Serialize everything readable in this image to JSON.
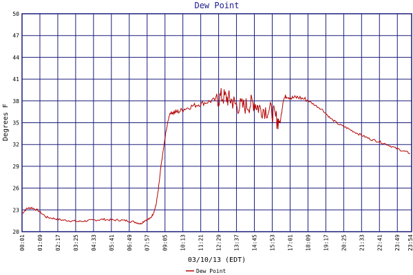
{
  "chart_data": {
    "type": "line",
    "title": "Dew Point",
    "xlabel": "03/10/13 (EDT)",
    "ylabel": "Degrees F",
    "ylim": [
      20,
      50
    ],
    "y_ticks": [
      "20",
      "23",
      "26",
      "29",
      "32",
      "35",
      "38",
      "41",
      "44",
      "47",
      "50"
    ],
    "x_tick_labels": [
      "00:01",
      "01:09",
      "02:17",
      "03:25",
      "04:33",
      "05:41",
      "06:49",
      "07:57",
      "09:05",
      "10:13",
      "11:21",
      "12:29",
      "13:37",
      "14:45",
      "15:53",
      "17:01",
      "18:09",
      "19:17",
      "20:25",
      "21:33",
      "22:41",
      "23:49",
      "23:54"
    ],
    "grid": true,
    "legend_position": "bottom-center",
    "colors": {
      "series": "#b40000",
      "grid": "#1a1a7a",
      "title": "#1a1a8c"
    },
    "series": [
      {
        "name": "Dew Point",
        "x_hours": [
          0.0,
          0.3,
          0.6,
          1.0,
          1.5,
          2.0,
          2.5,
          3.0,
          3.5,
          4.0,
          4.5,
          5.0,
          5.5,
          6.0,
          6.5,
          7.0,
          7.3,
          7.6,
          7.9,
          8.1,
          8.25,
          8.4,
          8.55,
          8.7,
          8.9,
          9.1,
          9.3,
          9.6,
          10.0,
          10.5,
          11.0,
          11.5,
          12.0,
          12.3,
          12.6,
          12.9,
          13.2,
          13.6,
          14.0,
          14.3,
          14.6,
          15.0,
          15.4,
          15.7,
          15.9,
          16.1,
          16.3,
          16.6,
          17.0,
          17.5,
          18.0,
          18.5,
          19.0,
          19.5,
          20.0,
          20.5,
          21.0,
          21.5,
          22.0,
          22.5,
          23.0,
          23.5,
          23.9
        ],
        "values": [
          22.5,
          23.2,
          23.3,
          22.9,
          22.0,
          21.8,
          21.6,
          21.5,
          21.4,
          21.5,
          21.6,
          21.7,
          21.6,
          21.6,
          21.5,
          21.3,
          21.1,
          21.6,
          21.8,
          22.6,
          23.6,
          25.8,
          28.8,
          31.2,
          34.2,
          36.3,
          36.4,
          36.5,
          36.9,
          37.3,
          37.6,
          37.9,
          38.2,
          38.6,
          38.4,
          38.1,
          37.4,
          37.2,
          37.5,
          37.8,
          37.0,
          36.8,
          36.5,
          35.4,
          35.0,
          38.3,
          38.7,
          38.4,
          38.5,
          38.2,
          37.5,
          36.8,
          35.6,
          34.8,
          34.3,
          33.7,
          33.2,
          32.7,
          32.4,
          32.0,
          31.5,
          31.1,
          30.8
        ]
      }
    ]
  }
}
